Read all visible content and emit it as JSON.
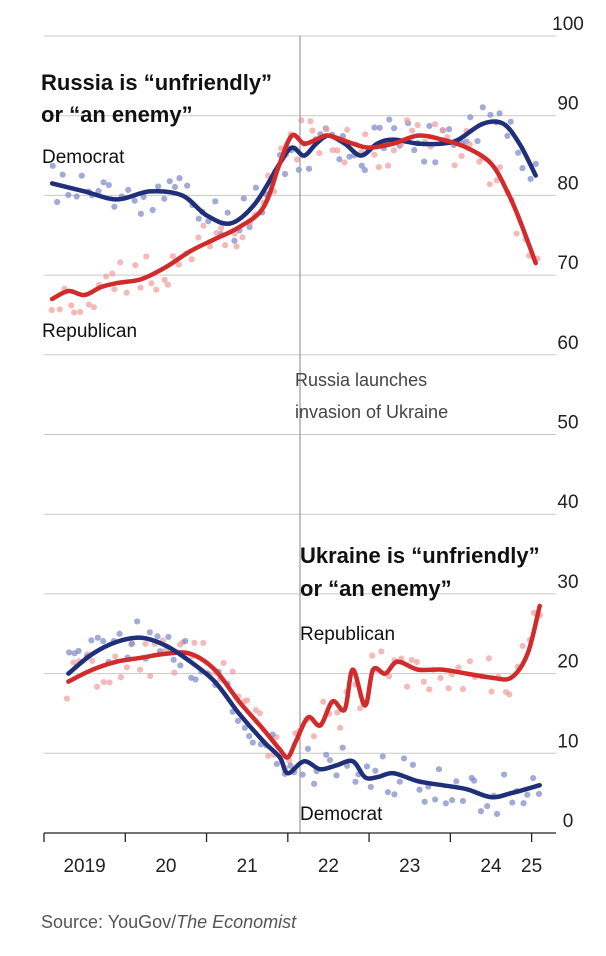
{
  "chart_data": {
    "type": "line",
    "ylim": [
      0,
      100
    ],
    "y_ticks": [
      0,
      10,
      20,
      30,
      40,
      50,
      60,
      70,
      80,
      90,
      100
    ],
    "x_range": [
      2019.0,
      2025.3
    ],
    "x_ticks": [
      {
        "value": 2019.5,
        "label": "2019"
      },
      {
        "value": 2020.5,
        "label": "20"
      },
      {
        "value": 2021.5,
        "label": "21"
      },
      {
        "value": 2022.5,
        "label": "22"
      },
      {
        "value": 2023.5,
        "label": "23"
      },
      {
        "value": 2024.5,
        "label": "24"
      },
      {
        "value": 2025.0,
        "label": "25"
      }
    ],
    "annotation": {
      "x": 2022.15,
      "lines": [
        "Russia launches",
        "invasion of Ukraine"
      ]
    },
    "panels": [
      {
        "title_lines": [
          "Russia is “unfriendly”",
          "or “an enemy”"
        ],
        "series": [
          {
            "name": "Democrat",
            "color": "#1f2f7a",
            "dot_color": "#7b86c6",
            "x": [
              2019.1,
              2019.5,
              2019.9,
              2020.3,
              2020.7,
              2021.0,
              2021.3,
              2021.6,
              2021.9,
              2022.05,
              2022.2,
              2022.35,
              2022.5,
              2022.7,
              2022.9,
              2023.1,
              2023.3,
              2023.6,
              2023.9,
              2024.1,
              2024.4,
              2024.65,
              2024.85,
              2025.05
            ],
            "values": [
              81.5,
              80.5,
              79.5,
              80.5,
              80.0,
              77.5,
              76.5,
              79.0,
              84.0,
              86.0,
              85.0,
              86.5,
              87.5,
              86.5,
              85.0,
              86.5,
              87.0,
              86.5,
              86.5,
              87.0,
              89.0,
              89.0,
              86.5,
              82.5
            ]
          },
          {
            "name": "Republican",
            "color": "#d12b2b",
            "dot_color": "#f09c9c",
            "x": [
              2019.1,
              2019.3,
              2019.5,
              2019.7,
              2019.9,
              2020.2,
              2020.5,
              2020.8,
              2021.1,
              2021.4,
              2021.7,
              2021.9,
              2022.05,
              2022.2,
              2022.35,
              2022.5,
              2022.8,
              2023.0,
              2023.3,
              2023.6,
              2023.9,
              2024.2,
              2024.5,
              2024.7,
              2024.85,
              2025.05
            ],
            "values": [
              67.0,
              68.0,
              67.5,
              68.5,
              69.0,
              69.5,
              71.0,
              73.0,
              74.5,
              76.0,
              78.5,
              84.0,
              87.5,
              86.5,
              87.0,
              87.5,
              86.5,
              86.0,
              86.5,
              87.5,
              87.0,
              86.0,
              84.0,
              80.5,
              77.0,
              71.5
            ]
          }
        ]
      },
      {
        "title_lines": [
          "Ukraine is “unfriendly”",
          "or “an enemy”"
        ],
        "series": [
          {
            "name": "Republican",
            "color": "#d12b2b",
            "dot_color": "#f09c9c",
            "x": [
              2019.3,
              2019.6,
              2019.9,
              2020.2,
              2020.5,
              2020.8,
              2021.1,
              2021.4,
              2021.7,
              2021.9,
              2022.0,
              2022.1,
              2022.25,
              2022.4,
              2022.55,
              2022.7,
              2022.8,
              2022.95,
              2023.05,
              2023.2,
              2023.35,
              2023.6,
              2023.9,
              2024.2,
              2024.5,
              2024.75,
              2024.95,
              2025.1
            ],
            "values": [
              19.0,
              20.5,
              21.5,
              22.0,
              22.5,
              22.5,
              20.5,
              16.5,
              13.0,
              10.5,
              9.5,
              11.5,
              14.5,
              13.5,
              16.5,
              15.5,
              20.5,
              16.0,
              20.5,
              20.0,
              21.5,
              20.5,
              20.5,
              20.0,
              19.5,
              19.5,
              22.5,
              28.5
            ]
          },
          {
            "name": "Democrat",
            "color": "#1f2f7a",
            "dot_color": "#7b86c6",
            "x": [
              2019.3,
              2019.6,
              2019.9,
              2020.2,
              2020.5,
              2020.8,
              2021.1,
              2021.4,
              2021.7,
              2021.9,
              2022.0,
              2022.2,
              2022.4,
              2022.6,
              2022.8,
              2022.95,
              2023.1,
              2023.3,
              2023.6,
              2023.9,
              2024.2,
              2024.5,
              2024.75,
              2025.1
            ],
            "values": [
              20.0,
              22.5,
              24.0,
              24.5,
              23.5,
              21.5,
              19.0,
              15.0,
              11.5,
              9.5,
              7.5,
              9.0,
              8.0,
              8.5,
              9.0,
              7.0,
              7.0,
              7.5,
              6.5,
              6.0,
              5.5,
              4.5,
              5.0,
              6.0
            ]
          }
        ]
      }
    ]
  },
  "source": {
    "prefix": "Source: YouGov/",
    "publication": "The Economist"
  }
}
